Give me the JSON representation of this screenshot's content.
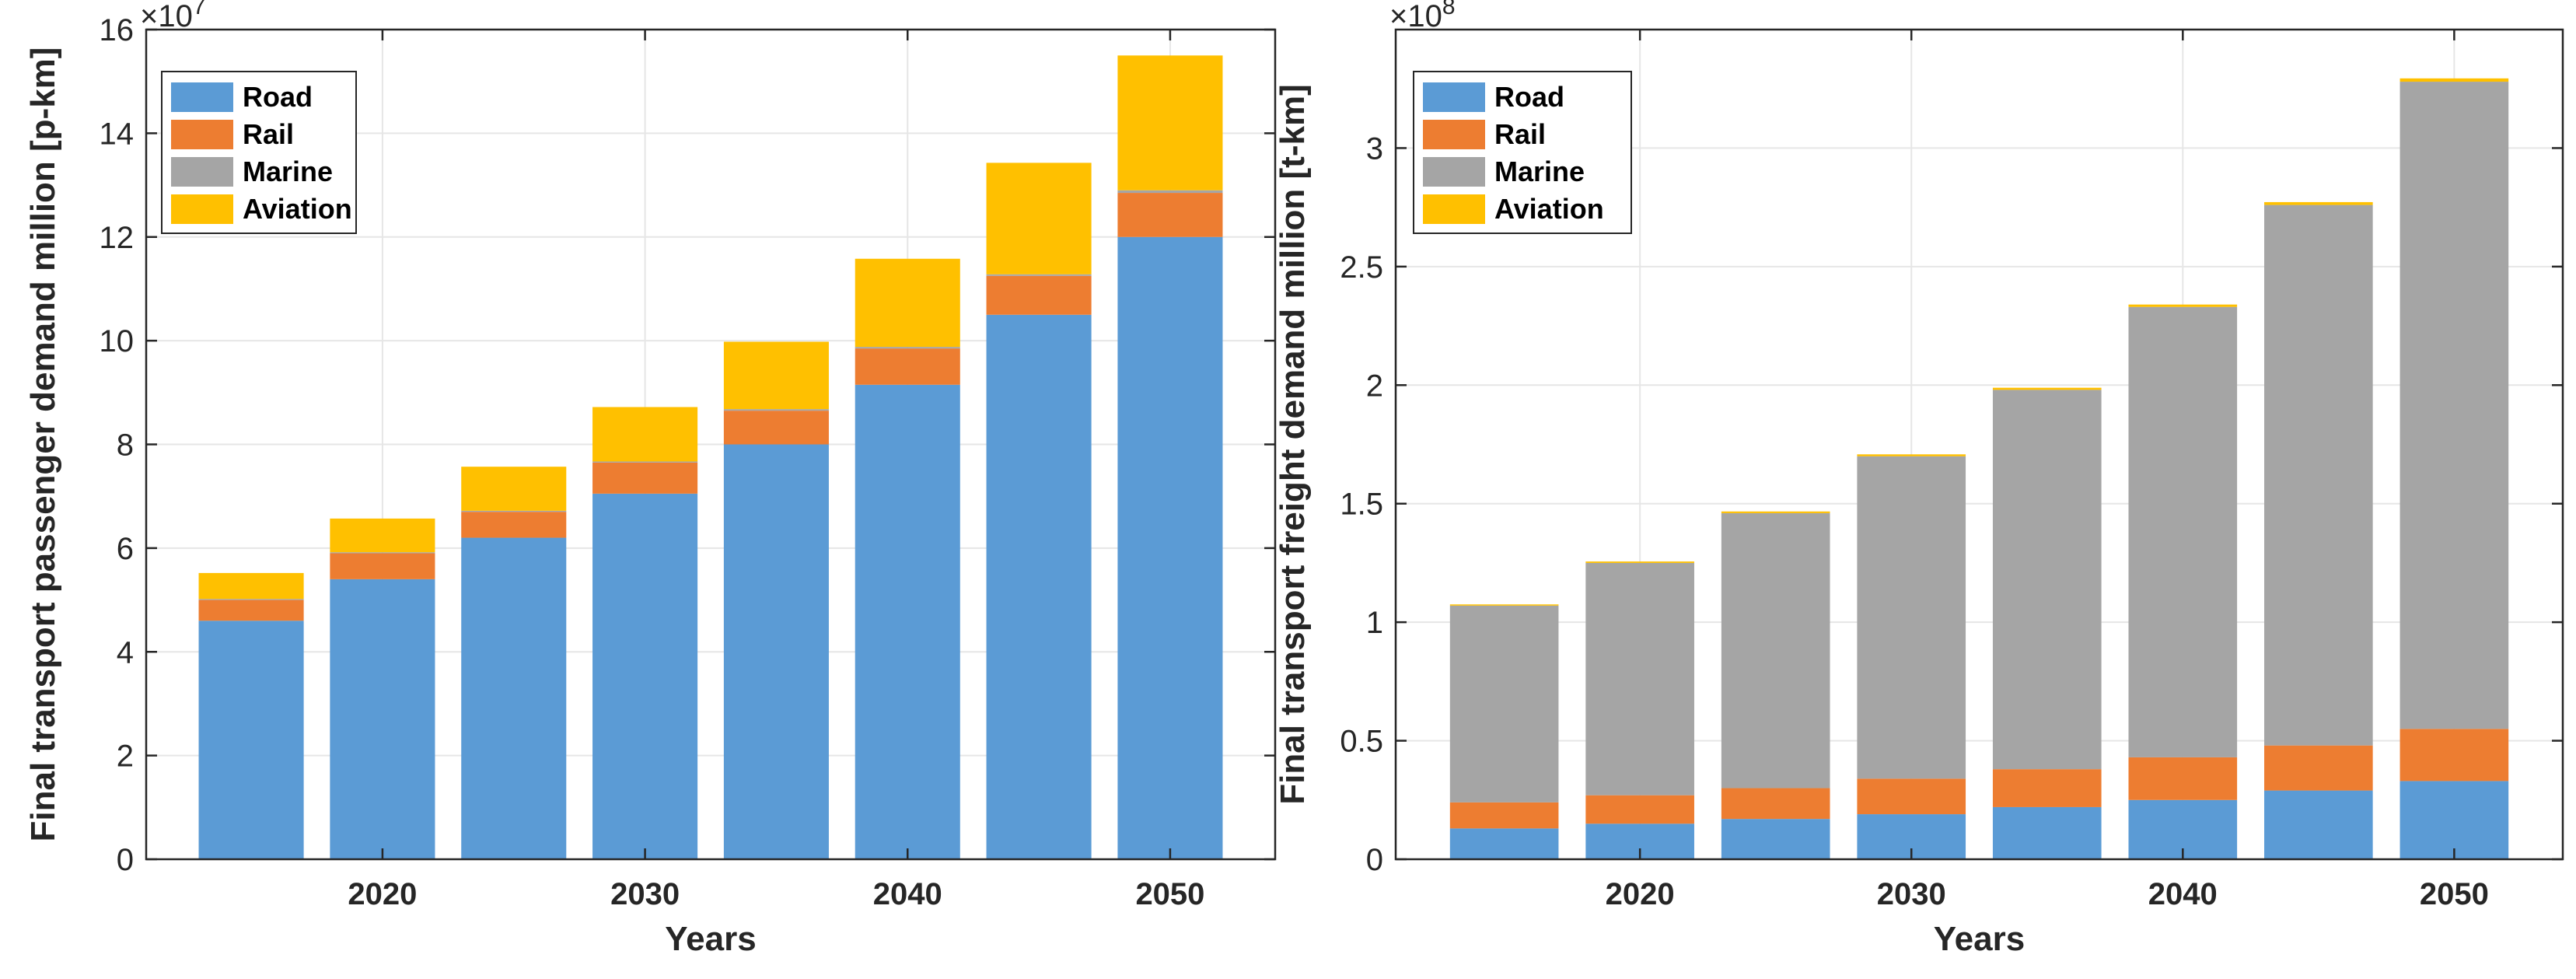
{
  "colors": {
    "road": "#5b9bd5",
    "rail": "#ed7d31",
    "marine": "#a5a5a5",
    "aviation": "#ffc000",
    "grid": "#e6e6e6",
    "axis": "#262626"
  },
  "chart_data": [
    {
      "type": "bar",
      "stacked": true,
      "title": "",
      "xlabel": "Years",
      "ylabel": "Final transport passenger demand million [p-km]",
      "exponent_base": "×10",
      "exponent_power": "7",
      "x": [
        2015,
        2020,
        2025,
        2030,
        2035,
        2040,
        2045,
        2050
      ],
      "xticks": [
        2020,
        2030,
        2040,
        2050
      ],
      "xtick_labels": [
        "2020",
        "2030",
        "2040",
        "2050"
      ],
      "xlim": [
        2011,
        2054
      ],
      "ylim": [
        0,
        16
      ],
      "yticks": [
        0,
        2,
        4,
        6,
        8,
        10,
        12,
        14,
        16
      ],
      "ytick_labels": [
        "0",
        "2",
        "4",
        "6",
        "8",
        "10",
        "12",
        "14",
        "16"
      ],
      "grid": true,
      "legend_position": "top-left",
      "series": [
        {
          "name": "Road",
          "color_key": "road",
          "values": [
            4.6,
            5.4,
            6.2,
            7.05,
            8.0,
            9.15,
            10.5,
            12.0
          ]
        },
        {
          "name": "Rail",
          "color_key": "rail",
          "values": [
            0.4,
            0.5,
            0.5,
            0.6,
            0.65,
            0.7,
            0.75,
            0.85
          ]
        },
        {
          "name": "Marine",
          "color_key": "marine",
          "values": [
            0.02,
            0.02,
            0.02,
            0.02,
            0.03,
            0.03,
            0.03,
            0.05
          ]
        },
        {
          "name": "Aviation",
          "color_key": "aviation",
          "values": [
            0.5,
            0.65,
            0.85,
            1.05,
            1.3,
            1.7,
            2.15,
            2.6
          ]
        }
      ]
    },
    {
      "type": "bar",
      "stacked": true,
      "title": "",
      "xlabel": "Years",
      "ylabel": "Final transport freight demand million [t-km]",
      "exponent_base": "×10",
      "exponent_power": "8",
      "x": [
        2015,
        2020,
        2025,
        2030,
        2035,
        2040,
        2045,
        2050
      ],
      "xticks": [
        2020,
        2030,
        2040,
        2050
      ],
      "xtick_labels": [
        "2020",
        "2030",
        "2040",
        "2050"
      ],
      "xlim": [
        2011,
        2054
      ],
      "ylim": [
        0,
        3.5
      ],
      "yticks": [
        0,
        0.5,
        1,
        1.5,
        2,
        2.5,
        3
      ],
      "ytick_labels": [
        "0",
        "0.5",
        "1",
        "1.5",
        "2",
        "2.5",
        "3"
      ],
      "grid": true,
      "legend_position": "top-left",
      "series": [
        {
          "name": "Road",
          "color_key": "road",
          "values": [
            0.13,
            0.15,
            0.17,
            0.19,
            0.22,
            0.25,
            0.29,
            0.33
          ]
        },
        {
          "name": "Rail",
          "color_key": "rail",
          "values": [
            0.11,
            0.12,
            0.13,
            0.15,
            0.16,
            0.18,
            0.19,
            0.22
          ]
        },
        {
          "name": "Marine",
          "color_key": "marine",
          "values": [
            0.83,
            0.98,
            1.16,
            1.36,
            1.6,
            1.9,
            2.28,
            2.73
          ]
        },
        {
          "name": "Aviation",
          "color_key": "aviation",
          "values": [
            0.005,
            0.006,
            0.007,
            0.008,
            0.009,
            0.01,
            0.012,
            0.014
          ]
        }
      ]
    }
  ]
}
